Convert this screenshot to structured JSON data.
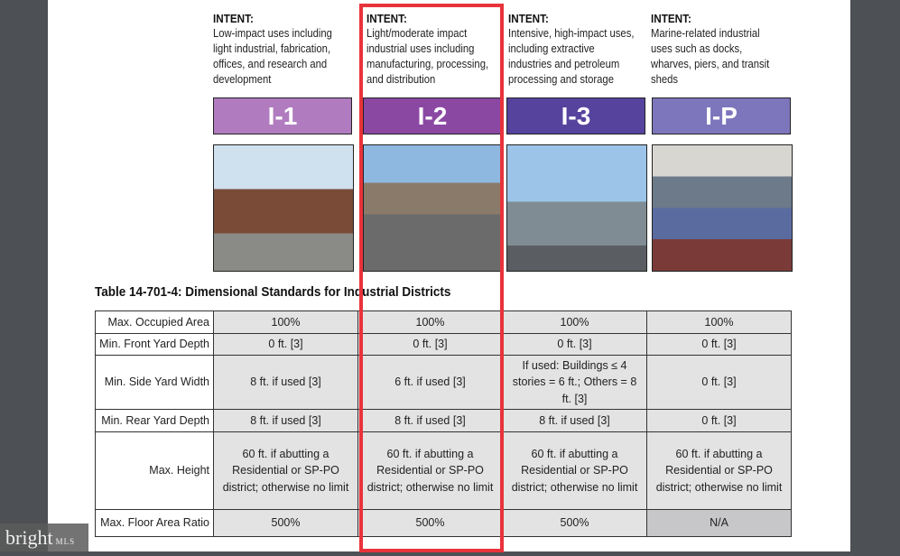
{
  "districts": [
    {
      "code": "I-1",
      "intent_label": "INTENT:",
      "intent": "Low-impact uses including light industrial, fabrication, offices, and research and development",
      "color": "#b07cbf"
    },
    {
      "code": "I-2",
      "intent_label": "INTENT:",
      "intent": "Light/moderate impact industrial uses including manufacturing, processing, and distribution",
      "color": "#8a48a3"
    },
    {
      "code": "I-3",
      "intent_label": "INTENT:",
      "intent": "Intensive, high-impact uses, including extractive industries and petroleum processing and storage",
      "color": "#56439e"
    },
    {
      "code": "I-P",
      "intent_label": "INTENT:",
      "intent": "Marine-related industrial uses such as docks, wharves, piers, and transit sheds",
      "color": "#7d76bc"
    }
  ],
  "table": {
    "title": "Table 14-701-4: Dimensional Standards for Industrial Districts",
    "rows": [
      {
        "label": "Max. Occupied Area",
        "values": [
          "100%",
          "100%",
          "100%",
          "100%"
        ]
      },
      {
        "label": "Min. Front Yard Depth",
        "values": [
          "0 ft. [3]",
          "0 ft. [3]",
          "0 ft. [3]",
          "0 ft. [3]"
        ]
      },
      {
        "label": "Min. Side Yard Width",
        "values": [
          "8 ft. if used [3]",
          "6 ft. if used [3]",
          "If used: Buildings ≤ 4 stories = 6 ft.; Others = 8 ft. [3]",
          "0 ft. [3]"
        ]
      },
      {
        "label": "Min. Rear Yard Depth",
        "values": [
          "8 ft. if used [3]",
          "8 ft. if used [3]",
          "8 ft. if used [3]",
          "0 ft. [3]"
        ]
      },
      {
        "label": "Max. Height",
        "values": [
          "60 ft. if abutting a Residential or SP-PO district; otherwise no limit",
          "60 ft. if abutting a Residential or SP-PO district; otherwise no limit",
          "60 ft. if abutting a Residential or SP-PO district; otherwise no limit",
          "60 ft. if abutting a Residential or SP-PO district; otherwise no limit"
        ]
      },
      {
        "label": "Max. Floor Area Ratio",
        "values": [
          "500%",
          "500%",
          "500%",
          "N/A"
        ]
      }
    ]
  },
  "highlight_color": "#e8333a",
  "watermark": {
    "brand": "bright",
    "suffix": "MLS"
  }
}
